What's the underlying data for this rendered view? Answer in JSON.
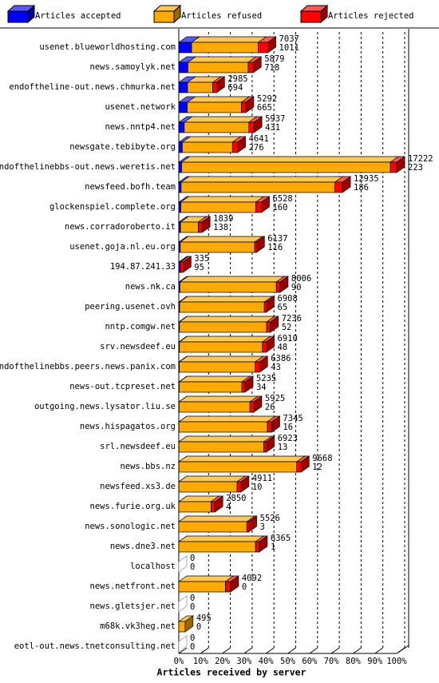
{
  "chart_data": {
    "type": "bar3d-stacked-horizontal",
    "x_label": "Articles received by server",
    "categories": [
      "usenet.blueworldhosting.com",
      "news.samoylyk.net",
      "endoftheline-out.news.chmurka.net",
      "usenet.network",
      "news.nntp4.net",
      "newsgate.tebibyte.org",
      "endofthelinebbs-out.news.weretis.net",
      "newsfeed.bofh.team",
      "glockenspiel.complete.org",
      "news.corradoroberto.it",
      "usenet.goja.nl.eu.org",
      "194.87.241.33",
      "news.nk.ca",
      "peering.usenet.ovh",
      "nntp.comgw.net",
      "srv.newsdeef.eu",
      "endofthelinebbs.peers.news.panix.com",
      "news-out.tcpreset.net",
      "outgoing.news.lysator.liu.se",
      "news.hispagatos.org",
      "srl.newsdeef.eu",
      "news.bbs.nz",
      "newsfeed.xs3.de",
      "news.furie.org.uk",
      "news.sonologic.net",
      "news.dne3.net",
      "localhost",
      "news.netfront.net",
      "news.gletsjer.net",
      "m68k.vk3heg.net",
      "eotl-out.news.tnetconsulting.net"
    ],
    "totals": [
      7037,
      5879,
      2985,
      5292,
      5937,
      4641,
      17222,
      12935,
      6528,
      1839,
      6137,
      335,
      8006,
      6908,
      7236,
      6910,
      6386,
      5235,
      5925,
      7345,
      6923,
      9668,
      4911,
      2850,
      5526,
      6365,
      0,
      4092,
      0,
      495,
      0
    ],
    "series": [
      {
        "name": "Articles accepted",
        "color": "#0000ff",
        "values": [
          1011,
          718,
          694,
          665,
          431,
          276,
          223,
          186,
          160,
          138,
          116,
          95,
          90,
          65,
          52,
          48,
          43,
          34,
          26,
          16,
          13,
          12,
          10,
          4,
          3,
          1,
          0,
          0,
          0,
          0,
          0
        ]
      },
      {
        "name": "Articles refused",
        "color": "#ffaa00",
        "values": [
          5266,
          4761,
          1991,
          4277,
          5106,
          3965,
          16499,
          12149,
          5918,
          1401,
          5871,
          20,
          7616,
          6693,
          6884,
          6562,
          5993,
          4951,
          5599,
          6979,
          6710,
          9306,
          4601,
          2546,
          5373,
          6064,
          0,
          3692,
          0,
          495,
          0
        ]
      },
      {
        "name": "Articles rejected",
        "color": "#ff0000",
        "values": [
          760,
          400,
          300,
          350,
          400,
          400,
          500,
          600,
          450,
          300,
          150,
          220,
          300,
          150,
          300,
          300,
          350,
          250,
          300,
          350,
          200,
          350,
          300,
          300,
          150,
          300,
          0,
          400,
          0,
          0,
          0
        ]
      }
    ],
    "xlim": [
      0,
      17222
    ],
    "xticks": [
      {
        "value": 0,
        "label": "0%"
      },
      {
        "value": 1722.2,
        "label": "10%"
      },
      {
        "value": 3444.4,
        "label": "20%"
      },
      {
        "value": 5166.6,
        "label": "30%"
      },
      {
        "value": 6888.8,
        "label": "40%"
      },
      {
        "value": 8611,
        "label": "50%"
      },
      {
        "value": 10333.2,
        "label": "60%"
      },
      {
        "value": 12055.4,
        "label": "70%"
      },
      {
        "value": 13777.6,
        "label": "80%"
      },
      {
        "value": 15499.8,
        "label": "90%"
      },
      {
        "value": 17222,
        "label": "100%"
      }
    ],
    "grid": true
  }
}
